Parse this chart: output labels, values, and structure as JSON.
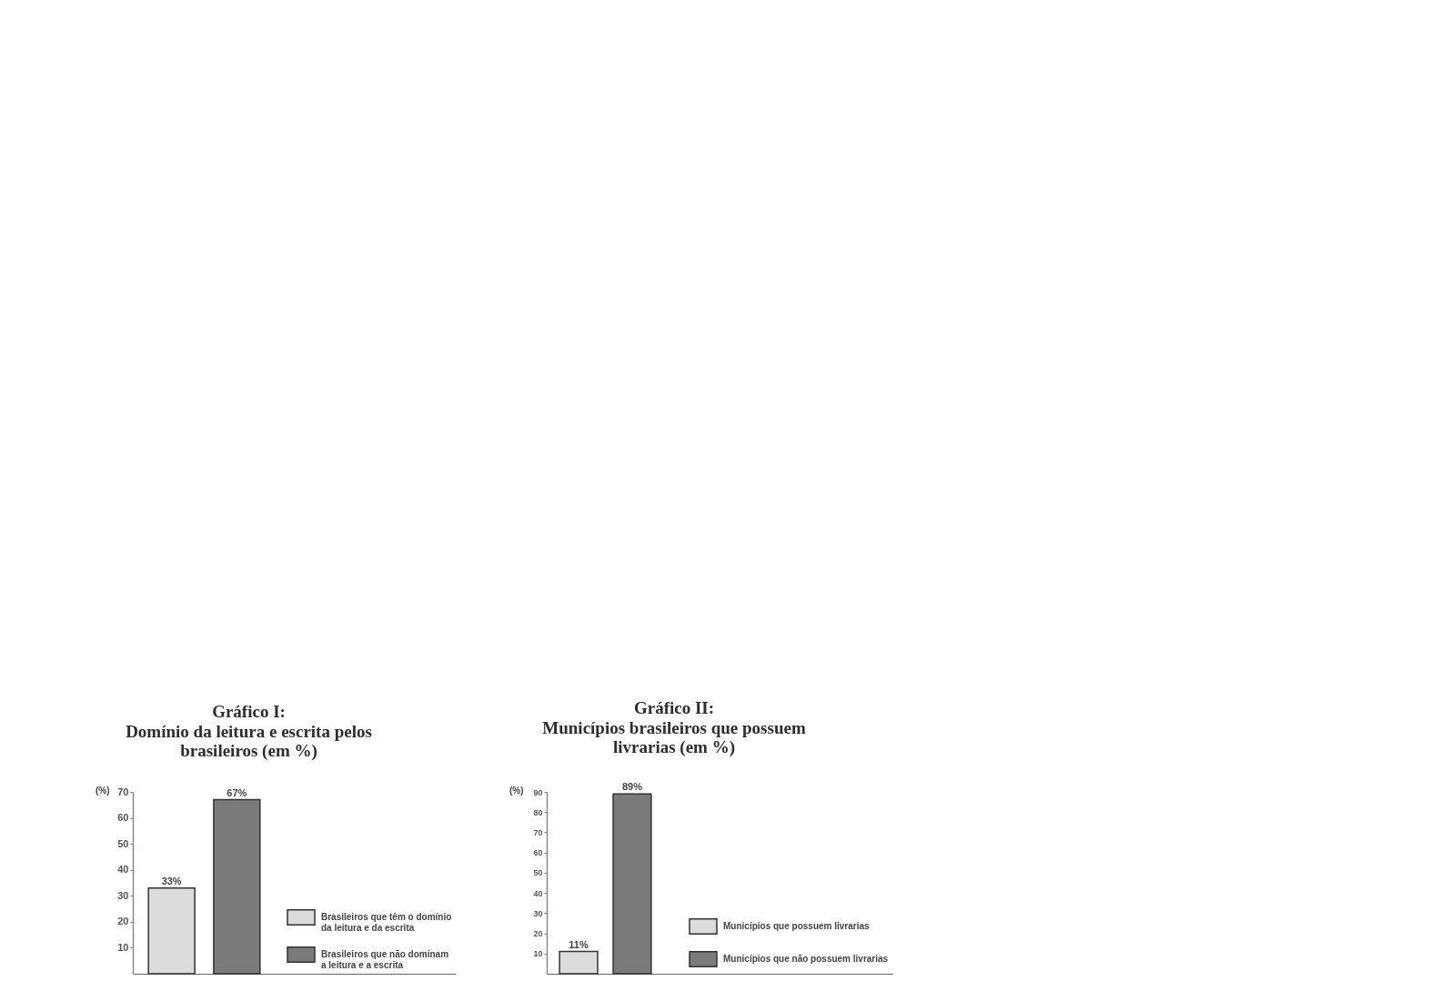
{
  "chart_data": [
    {
      "type": "bar",
      "title": "Gráfico I:",
      "subtitle": "Domínio da leitura e escrita pelos brasileiros (em %)",
      "ylabel": "(%)",
      "categories": [
        null
      ],
      "series": [
        {
          "name": "Brasileiros que têm o domínio da leitura e da escrita",
          "color": "#dcdcdc",
          "values": [
            33
          ],
          "value_labels": [
            "33%"
          ]
        },
        {
          "name": "Brasileiros que não dominam a leitura e a escrita",
          "color": "#7a7a7a",
          "values": [
            67
          ],
          "value_labels": [
            "67%"
          ]
        }
      ],
      "ylim": [
        0,
        70
      ],
      "yticks": [
        10,
        20,
        30,
        40,
        50,
        60,
        70
      ],
      "grid": false,
      "legend": "bottom right",
      "tick_labels": "y"
    },
    {
      "type": "bar",
      "title": "Gráfico II:",
      "subtitle": "Municípios brasileiros que possuem livrarias (em %)",
      "ylabel": "(%)",
      "categories": [
        null
      ],
      "series": [
        {
          "name": "Municípios que possuem livrarias",
          "color": "#dcdcdc",
          "values": [
            11
          ],
          "value_labels": [
            "11%"
          ]
        },
        {
          "name": "Municípios que não possuem livrarias",
          "color": "#7a7a7a",
          "values": [
            89
          ],
          "value_labels": [
            "89%"
          ]
        }
      ],
      "ylim": [
        0,
        90
      ],
      "yticks": [
        10,
        20,
        30,
        40,
        50,
        60,
        70,
        80,
        90
      ],
      "grid": false,
      "legend": "bottom right",
      "tick_labels": "y"
    }
  ]
}
